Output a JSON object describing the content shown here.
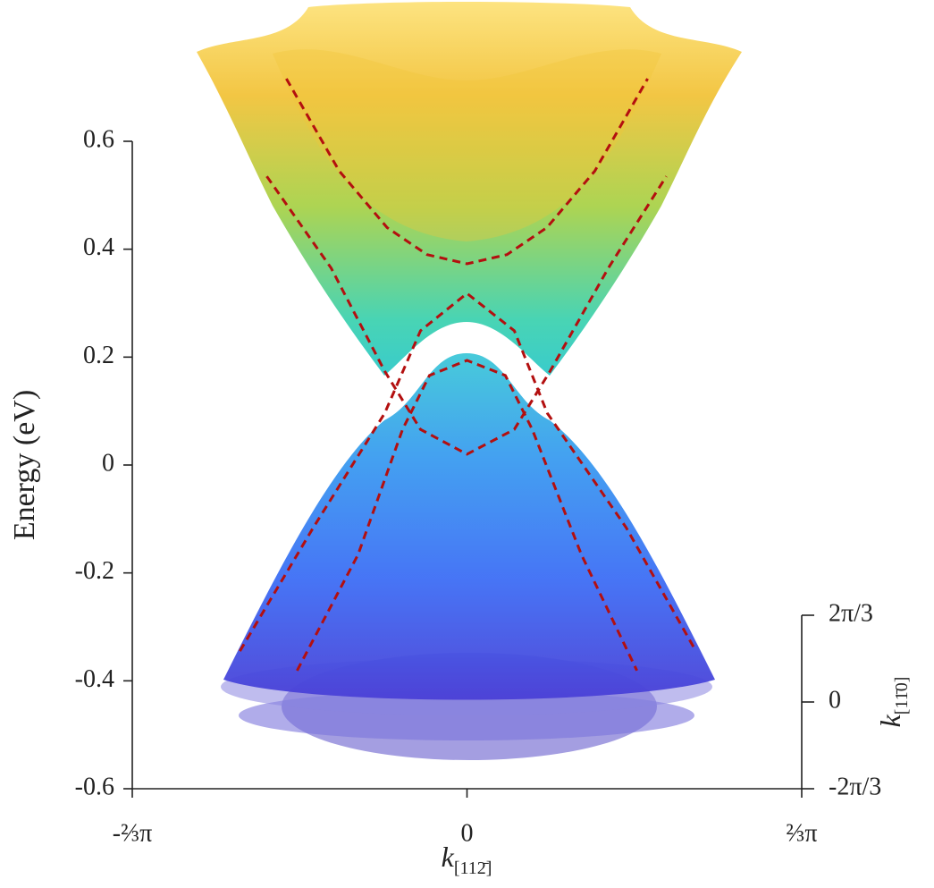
{
  "chart_data": {
    "type": "line",
    "ylabel": "Energy (eV)",
    "xlabel": {
      "main": "k",
      "sub": "[112̄]"
    },
    "zlabel": {
      "main": "k",
      "sub": "[11̄0]"
    },
    "xlim": [
      -2.0944,
      2.0944
    ],
    "xticks": [
      {
        "value": -2.0944,
        "label": "-⅔π"
      },
      0,
      {
        "value": 2.0944,
        "label": "⅔π"
      }
    ],
    "ylim": [
      -0.6,
      0.6
    ],
    "yticks": [
      0.6,
      0.4,
      0.2,
      0,
      -0.2,
      -0.4,
      -0.6
    ],
    "zlim": [
      -2.0944,
      2.0944
    ],
    "zticks": [
      {
        "value": 2.0944,
        "label": "2π/3"
      },
      0,
      {
        "value": -2.0944,
        "label": "-2π/3"
      }
    ],
    "series": [
      {
        "color": "#b30f0f",
        "x": [
          -1.13,
          -0.8,
          -0.5,
          -0.25,
          0,
          0.25,
          0.5,
          0.8,
          1.13
        ],
        "values": [
          0.716,
          0.545,
          0.44,
          0.39,
          0.373,
          0.39,
          0.44,
          0.545,
          0.716
        ]
      },
      {
        "color": "#b30f0f",
        "x": [
          -1.253,
          -0.85,
          -0.515,
          -0.291,
          0,
          0.296,
          0.52,
          0.884,
          1.247
        ],
        "values": [
          0.535,
          0.365,
          0.174,
          0.066,
          0.02,
          0.066,
          0.174,
          0.365,
          0.535
        ]
      },
      {
        "color": "#b30f0f",
        "x": [
          -1.421,
          -0.962,
          -0.515,
          -0.291,
          0,
          0.296,
          0.503,
          0.996,
          1.432
        ],
        "values": [
          -0.345,
          -0.116,
          0.096,
          0.249,
          0.318,
          0.249,
          0.096,
          -0.116,
          -0.345
        ]
      },
      {
        "color": "#b30f0f",
        "x": [
          -1.063,
          -0.682,
          -0.403,
          -0.235,
          0,
          0.24,
          0.408,
          0.716,
          1.063
        ],
        "values": [
          -0.381,
          -0.166,
          0.066,
          0.166,
          0.194,
          0.166,
          0.066,
          -0.166,
          -0.381
        ]
      }
    ]
  }
}
